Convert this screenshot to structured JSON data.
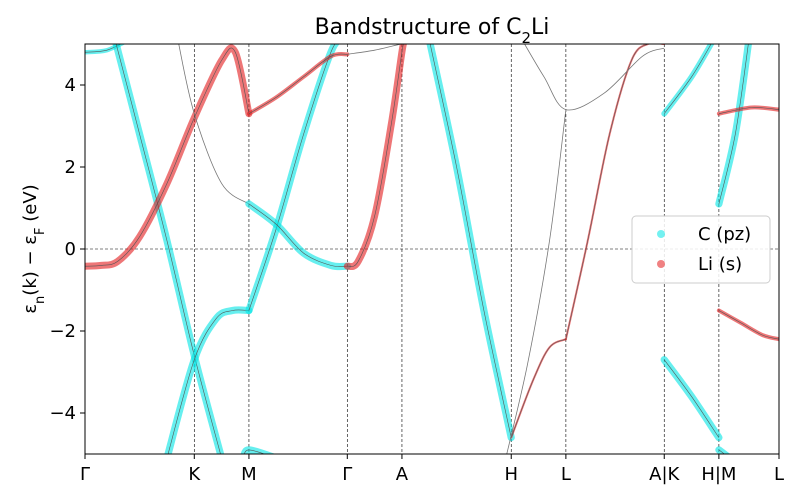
{
  "chart_data": {
    "type": "line",
    "title_main": "Bandstructure of C",
    "title_sub": "2",
    "title_tail": "Li",
    "ylabel_pre": "ε",
    "ylabel_n": "n",
    "ylabel_mid": "(k) − ε",
    "ylabel_F": "F",
    "ylabel_unit": " (eV)",
    "ylim": [
      -5,
      5
    ],
    "xlim": [
      0,
      12.7
    ],
    "yticks": [
      {
        "value": -4,
        "label": "−4"
      },
      {
        "value": -2,
        "label": "−2"
      },
      {
        "value": 0,
        "label": "0"
      },
      {
        "value": 2,
        "label": "2"
      },
      {
        "value": 4,
        "label": "4"
      }
    ],
    "kpoints": [
      {
        "x": 0.0,
        "label": "Γ"
      },
      {
        "x": 2.0,
        "label": "K"
      },
      {
        "x": 3.0,
        "label": "M"
      },
      {
        "x": 4.8,
        "label": "Γ"
      },
      {
        "x": 5.8,
        "label": "A"
      },
      {
        "x": 7.8,
        "label": "H"
      },
      {
        "x": 8.8,
        "label": "L"
      },
      {
        "x": 10.6,
        "label": "A|K"
      },
      {
        "x": 11.6,
        "label": "H|M"
      },
      {
        "x": 12.7,
        "label": "L"
      }
    ],
    "fermi_level": 0,
    "legend": {
      "placement": "right",
      "entries": [
        {
          "name": "C (pz)",
          "color": "#00e5e5"
        },
        {
          "name": "Li (s)",
          "color": "#e31a1c"
        }
      ]
    },
    "bands": [
      {
        "points": [
          [
            0,
            4.8
          ],
          [
            0.4,
            4.85
          ],
          [
            0.8,
            5.1
          ]
        ],
        "weight": 0.4
      },
      {
        "points": [
          [
            0.55,
            5.1
          ],
          [
            1.0,
            2.8
          ],
          [
            1.5,
            0.2
          ],
          [
            2.0,
            -2.6
          ],
          [
            2.5,
            -5.1
          ]
        ],
        "weight": 0.2
      },
      {
        "points": [
          [
            1.5,
            -5.1
          ],
          [
            2.0,
            -2.7
          ],
          [
            2.4,
            -1.7
          ],
          [
            2.7,
            -1.5
          ],
          [
            3.0,
            -1.5
          ]
        ],
        "weight": 0.2
      },
      {
        "points": [
          [
            0,
            -0.42
          ],
          [
            0.3,
            -0.4
          ],
          [
            0.6,
            -0.3
          ],
          [
            1.0,
            0.3
          ],
          [
            1.5,
            1.6
          ],
          [
            2.0,
            3.2
          ],
          [
            2.5,
            4.6
          ],
          [
            2.75,
            4.8
          ],
          [
            3.0,
            3.3
          ]
        ],
        "weight": 1.0
      },
      {
        "points": [
          [
            1.7,
            5.1
          ],
          [
            2.0,
            3.3
          ],
          [
            2.5,
            1.6
          ],
          [
            3.0,
            1.1
          ]
        ],
        "weight": 0.05
      },
      {
        "points": [
          [
            3.0,
            -1.5
          ],
          [
            3.5,
            0.5
          ],
          [
            4.0,
            2.8
          ],
          [
            4.5,
            4.8
          ],
          [
            4.7,
            5.1
          ]
        ],
        "weight": 0.2
      },
      {
        "points": [
          [
            2.9,
            -5.1
          ],
          [
            3.0,
            -4.9
          ],
          [
            3.5,
            -5.1
          ]
        ],
        "weight": 0.2
      },
      {
        "points": [
          [
            3.0,
            3.3
          ],
          [
            3.5,
            3.7
          ],
          [
            4.0,
            4.2
          ],
          [
            4.5,
            4.7
          ],
          [
            4.8,
            4.75
          ]
        ],
        "weight": 0.7
      },
      {
        "points": [
          [
            3.0,
            1.1
          ],
          [
            3.5,
            0.6
          ],
          [
            4.0,
            -0.1
          ],
          [
            4.5,
            -0.4
          ],
          [
            4.8,
            -0.42
          ]
        ],
        "weight": 0.2
      },
      {
        "points": [
          [
            4.8,
            -0.42
          ],
          [
            5.0,
            -0.3
          ],
          [
            5.3,
            0.8
          ],
          [
            5.6,
            3.0
          ],
          [
            5.8,
            4.8
          ],
          [
            5.85,
            5.1
          ]
        ],
        "weight": 1.0
      },
      {
        "points": [
          [
            4.8,
            4.75
          ],
          [
            5.3,
            4.85
          ],
          [
            5.8,
            5.0
          ],
          [
            6.3,
            5.1
          ]
        ],
        "weight": 0.05
      },
      {
        "points": [
          [
            6.3,
            5.1
          ],
          [
            6.8,
            2.0
          ],
          [
            7.3,
            -1.5
          ],
          [
            7.8,
            -4.6
          ]
        ],
        "weight": 0.2
      },
      {
        "points": [
          [
            7.8,
            -4.6
          ],
          [
            8.2,
            -3.2
          ],
          [
            8.5,
            -2.4
          ],
          [
            8.8,
            -2.2
          ]
        ],
        "weight": 0.5
      },
      {
        "points": [
          [
            8.8,
            -2.2
          ],
          [
            9.2,
            0.2
          ],
          [
            9.6,
            2.8
          ],
          [
            10.0,
            4.6
          ],
          [
            10.3,
            5.0
          ],
          [
            10.6,
            5.0
          ]
        ],
        "weight": 0.5
      },
      {
        "points": [
          [
            7.7,
            -5.1
          ],
          [
            8.1,
            -2.8
          ],
          [
            8.5,
            0.2
          ],
          [
            8.8,
            3.4
          ]
        ],
        "weight": 0.05
      },
      {
        "points": [
          [
            8.0,
            5.1
          ],
          [
            8.4,
            4.2
          ],
          [
            8.8,
            3.4
          ],
          [
            9.5,
            3.8
          ],
          [
            10.2,
            4.7
          ],
          [
            10.6,
            4.9
          ]
        ],
        "weight": 0.05
      },
      {
        "points": [
          [
            10.6,
            -2.7
          ],
          [
            11.1,
            -3.6
          ],
          [
            11.6,
            -4.6
          ]
        ],
        "weight": 0.2
      },
      {
        "points": [
          [
            10.6,
            3.3
          ],
          [
            11.1,
            4.2
          ],
          [
            11.5,
            5.1
          ]
        ],
        "weight": 0.3
      },
      {
        "points": [
          [
            11.6,
            -1.5
          ],
          [
            12.0,
            -1.8
          ],
          [
            12.4,
            -2.1
          ],
          [
            12.7,
            -2.2
          ]
        ],
        "weight": 0.7
      },
      {
        "points": [
          [
            11.6,
            1.1
          ],
          [
            11.9,
            2.8
          ],
          [
            12.15,
            5.1
          ]
        ],
        "weight": 0.2
      },
      {
        "points": [
          [
            11.6,
            3.3
          ],
          [
            12.2,
            3.45
          ],
          [
            12.7,
            3.4
          ]
        ],
        "weight": 0.7
      },
      {
        "points": [
          [
            11.6,
            -4.9
          ],
          [
            11.8,
            -5.1
          ]
        ],
        "weight": 0.2
      }
    ]
  }
}
